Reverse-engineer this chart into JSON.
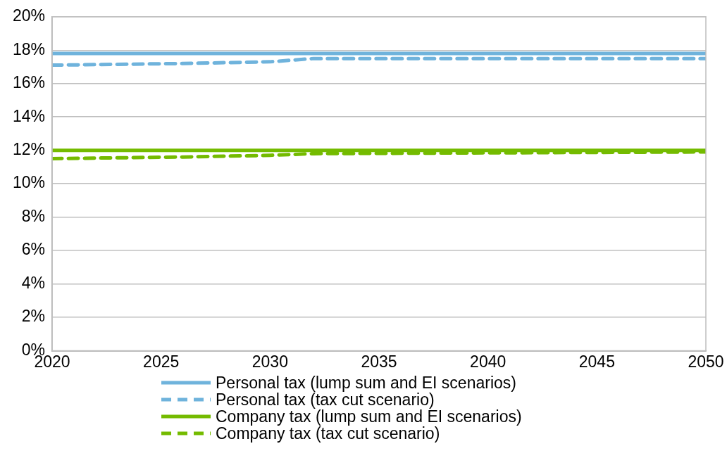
{
  "chart_data": {
    "type": "line",
    "xlim": [
      2020,
      2050
    ],
    "xticks": [
      2020,
      2025,
      2030,
      2035,
      2040,
      2045,
      2050
    ],
    "ylim": [
      0,
      20
    ],
    "yticks": [
      {
        "value": 0,
        "label": "0%"
      },
      {
        "value": 2,
        "label": "2%"
      },
      {
        "value": 4,
        "label": "4%"
      },
      {
        "value": 6,
        "label": "6%"
      },
      {
        "value": 8,
        "label": "8%"
      },
      {
        "value": 10,
        "label": "10%"
      },
      {
        "value": 12,
        "label": "12%"
      },
      {
        "value": 14,
        "label": "14%"
      },
      {
        "value": 16,
        "label": "16%"
      },
      {
        "value": 18,
        "label": "18%"
      },
      {
        "value": 20,
        "label": "20%"
      }
    ],
    "grid": "y",
    "legend": "bottom",
    "marker": "none",
    "series": [
      {
        "name": "Personal tax (lump sum and EI scenarios)",
        "color": "#6fb3dc",
        "line_style": "solid",
        "x": [
          2020,
          2050
        ],
        "values": [
          17.8,
          17.8
        ]
      },
      {
        "name": "Personal tax (tax cut scenario)",
        "color": "#6fb3dc",
        "line_style": "dashed",
        "x": [
          2020,
          2026,
          2030,
          2032,
          2050
        ],
        "values": [
          17.1,
          17.2,
          17.3,
          17.5,
          17.5
        ]
      },
      {
        "name": "Company tax (lump sum and EI scenarios)",
        "color": "#74bb00",
        "line_style": "solid",
        "x": [
          2020,
          2050
        ],
        "values": [
          12.0,
          12.0
        ]
      },
      {
        "name": "Company tax (tax cut scenario)",
        "color": "#74bb00",
        "line_style": "dashed",
        "x": [
          2020,
          2026,
          2030,
          2032,
          2050
        ],
        "values": [
          11.5,
          11.6,
          11.7,
          11.8,
          11.9
        ]
      }
    ]
  }
}
